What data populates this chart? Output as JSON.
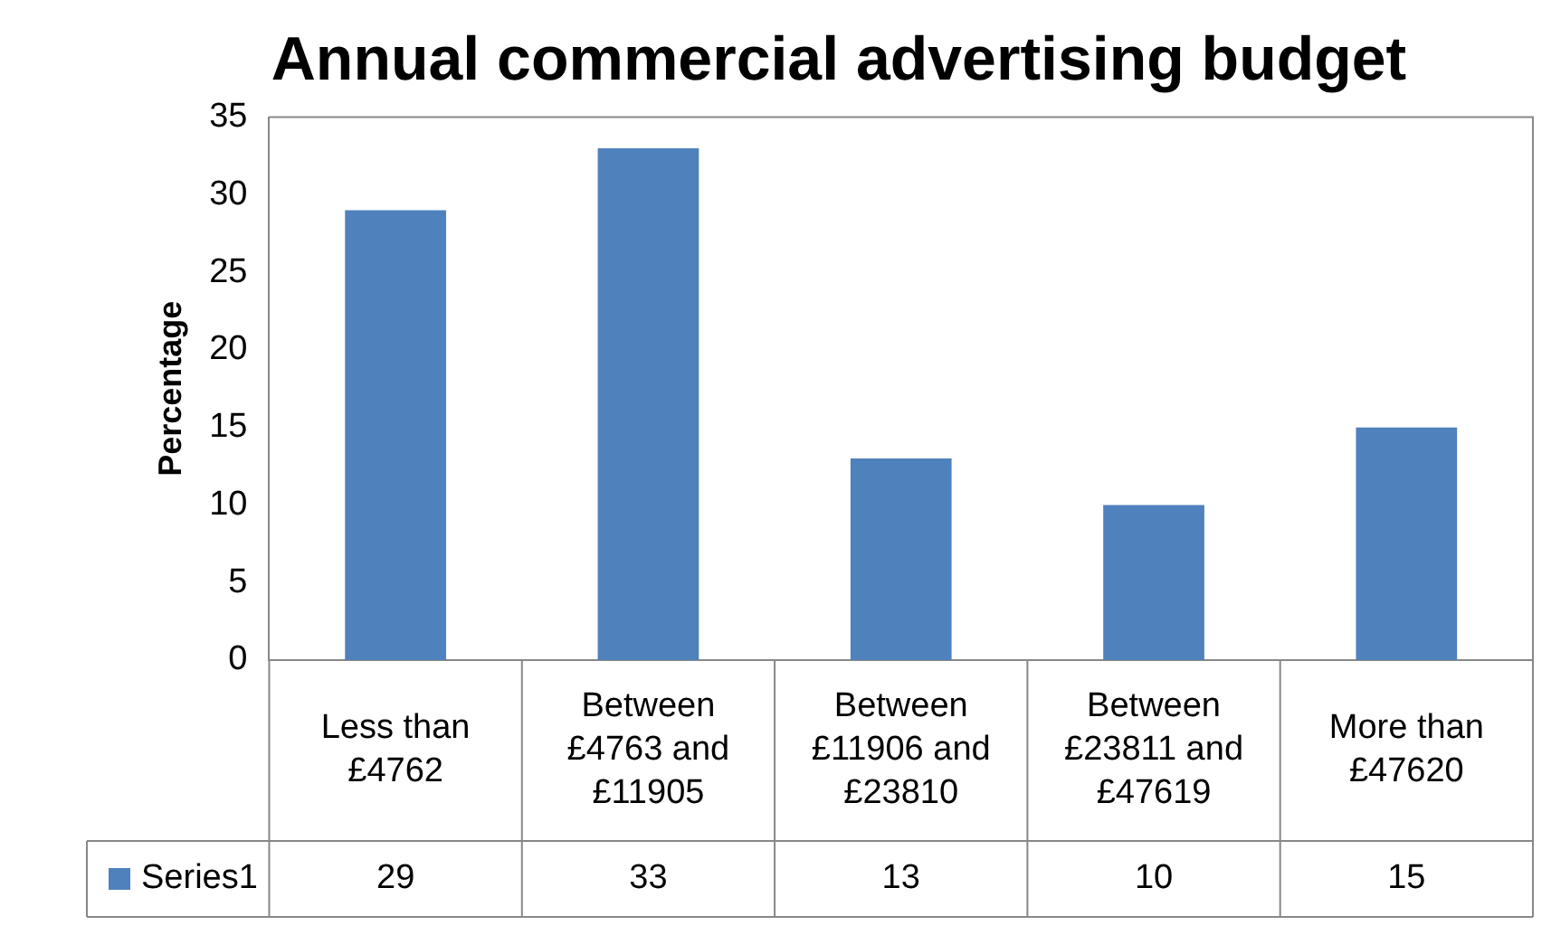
{
  "chart_data": {
    "type": "bar",
    "title": "Annual commercial advertising budget",
    "ylabel": "Percentage",
    "categories": [
      "Less than £4762",
      "Between £4763 and £11905",
      "Between £11906 and £23810",
      "Between £23811 and £47619",
      "More than £47620"
    ],
    "series": [
      {
        "name": "Series1",
        "color": "#4f81bd",
        "values": [
          29,
          33,
          13,
          10,
          15
        ]
      }
    ],
    "ylim": [
      0,
      35
    ],
    "yticks": [
      0,
      5,
      10,
      15,
      20,
      25,
      30,
      35
    ],
    "grid": false,
    "legend": "bottom",
    "data_labels": true
  }
}
